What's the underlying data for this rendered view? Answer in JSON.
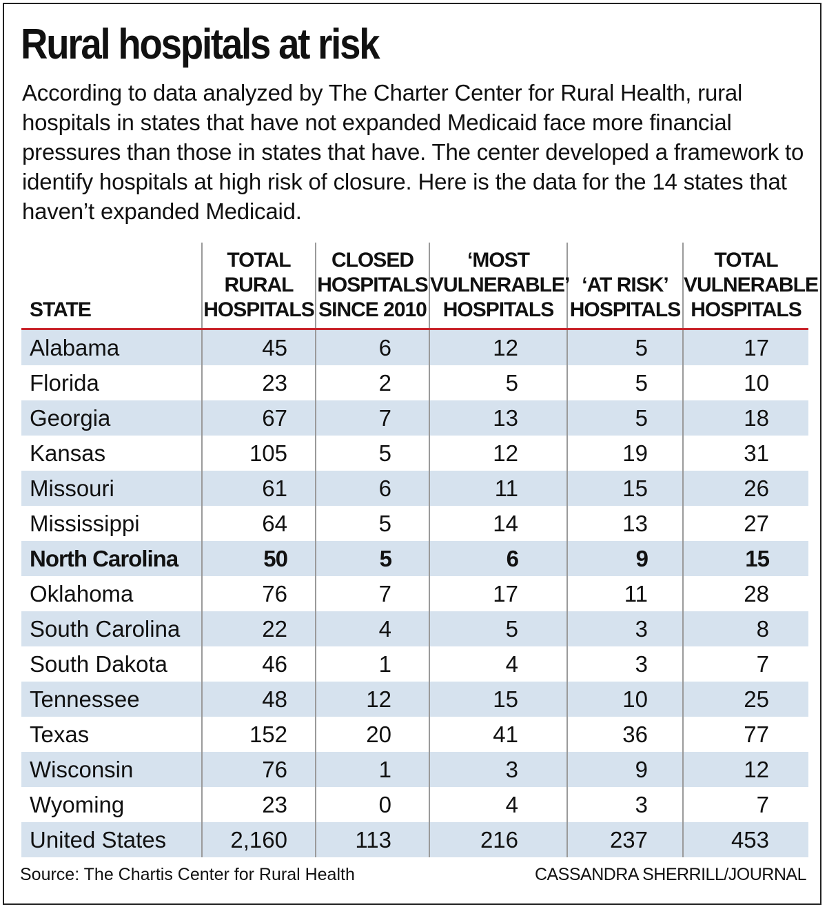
{
  "title": "Rural hospitals at risk",
  "intro": "According to data analyzed by The Charter Center for Rural Health, rural hospitals in states that have not expanded Medicaid face more financial pressures than those in states that have. The center developed a framework to identify hospitals at high risk of closure. Here is the data for the 14 states that haven’t expanded Medicaid.",
  "source": "Source: The Chartis Center for Rural Health",
  "credit": "CASSANDRA SHERRILL/JOURNAL",
  "chart_data": {
    "type": "table",
    "title": "Rural hospitals at risk",
    "columns": [
      {
        "key": "state",
        "lines": [
          "STATE"
        ]
      },
      {
        "key": "total_rural",
        "lines": [
          "TOTAL",
          "RURAL",
          "HOSPITALS"
        ]
      },
      {
        "key": "closed",
        "lines": [
          "CLOSED",
          "HOSPITALS",
          "SINCE 2010"
        ]
      },
      {
        "key": "most_vulnerable",
        "lines": [
          "‘MOST",
          "VULNERABLE’",
          "HOSPITALS"
        ]
      },
      {
        "key": "at_risk",
        "lines": [
          "‘AT RISK’",
          "HOSPITALS"
        ]
      },
      {
        "key": "total_vulnerable",
        "lines": [
          "TOTAL",
          "VULNERABLE",
          "HOSPITALS"
        ]
      }
    ],
    "rows": [
      {
        "state": "Alabama",
        "values": [
          "45",
          "6",
          "12",
          "5",
          "17"
        ],
        "shaded": true,
        "bold": false
      },
      {
        "state": "Florida",
        "values": [
          "23",
          "2",
          "5",
          "5",
          "10"
        ],
        "shaded": false,
        "bold": false
      },
      {
        "state": "Georgia",
        "values": [
          "67",
          "7",
          "13",
          "5",
          "18"
        ],
        "shaded": true,
        "bold": false
      },
      {
        "state": "Kansas",
        "values": [
          "105",
          "5",
          "12",
          "19",
          "31"
        ],
        "shaded": false,
        "bold": false
      },
      {
        "state": "Missouri",
        "values": [
          "61",
          "6",
          "11",
          "15",
          "26"
        ],
        "shaded": true,
        "bold": false
      },
      {
        "state": "Mississippi",
        "values": [
          "64",
          "5",
          "14",
          "13",
          "27"
        ],
        "shaded": false,
        "bold": false
      },
      {
        "state": "North Carolina",
        "values": [
          "50",
          "5",
          "6",
          "9",
          "15"
        ],
        "shaded": true,
        "bold": true
      },
      {
        "state": "Oklahoma",
        "values": [
          "76",
          "7",
          "17",
          "11",
          "28"
        ],
        "shaded": false,
        "bold": false
      },
      {
        "state": "South Carolina",
        "values": [
          "22",
          "4",
          "5",
          "3",
          "8"
        ],
        "shaded": true,
        "bold": false
      },
      {
        "state": "South Dakota",
        "values": [
          "46",
          "1",
          "4",
          "3",
          "7"
        ],
        "shaded": false,
        "bold": false
      },
      {
        "state": "Tennessee",
        "values": [
          "48",
          "12",
          "15",
          "10",
          "25"
        ],
        "shaded": true,
        "bold": false
      },
      {
        "state": "Texas",
        "values": [
          "152",
          "20",
          "41",
          "36",
          "77"
        ],
        "shaded": false,
        "bold": false
      },
      {
        "state": "Wisconsin",
        "values": [
          "76",
          "1",
          "3",
          "9",
          "12"
        ],
        "shaded": true,
        "bold": false
      },
      {
        "state": "Wyoming",
        "values": [
          "23",
          "0",
          "4",
          "3",
          "7"
        ],
        "shaded": false,
        "bold": false
      },
      {
        "state": "United States",
        "values": [
          "2,160",
          "113",
          "216",
          "237",
          "453"
        ],
        "shaded": true,
        "bold": false
      }
    ]
  },
  "colors": {
    "header_rule": "#c8242b",
    "row_shade": "#d6e2ee",
    "divider": "#9a9a9a",
    "text": "#111111"
  }
}
